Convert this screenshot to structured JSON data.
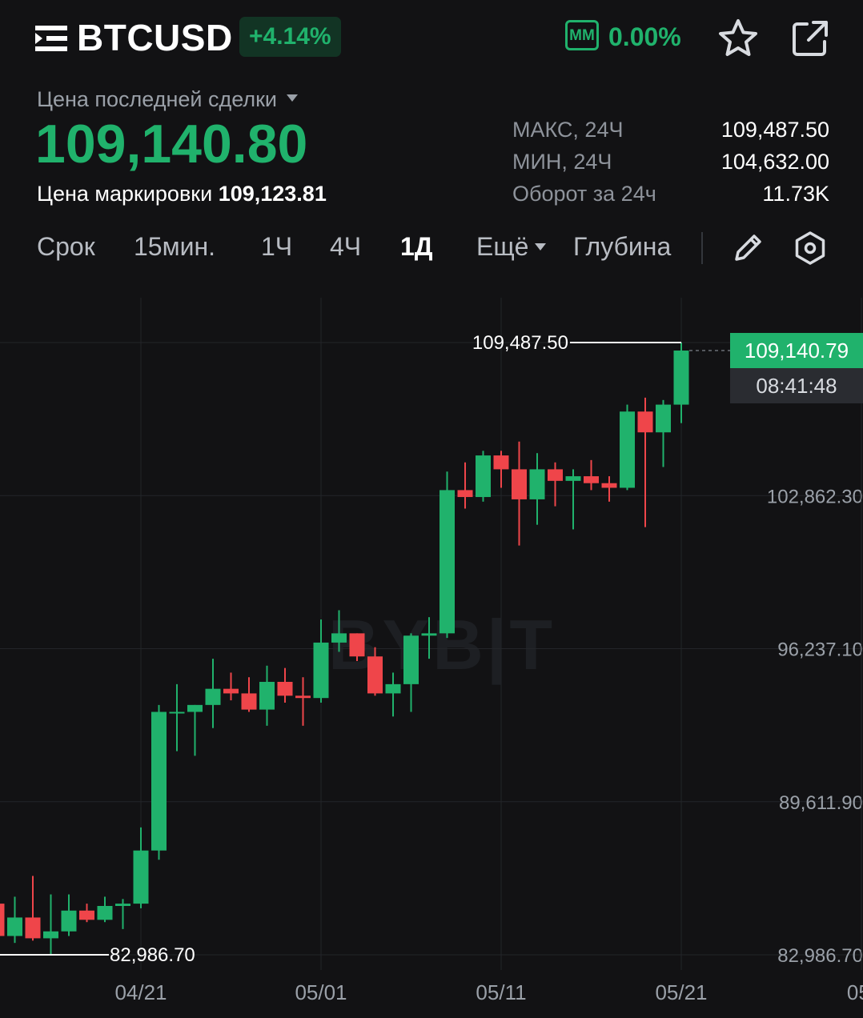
{
  "header": {
    "symbol": "BTCUSD",
    "change_percent": "+4.14%",
    "mm_label": "MM",
    "mm_value": "0.00%",
    "icons": [
      "menu-icon",
      "star-icon",
      "share-icon"
    ]
  },
  "price": {
    "type_label": "Цена последней сделки",
    "last_price": "109,140.80",
    "mark_label": "Цена маркировки",
    "mark_value": "109,123.81"
  },
  "stats": [
    {
      "label": "МАКС, 24Ч",
      "value": "109,487.50"
    },
    {
      "label": "МИН, 24Ч",
      "value": "104,632.00"
    },
    {
      "label": "Оборот за 24ч",
      "value": "11.73K"
    }
  ],
  "timeframes": {
    "label": "Срок",
    "items": [
      "15мин.",
      "1Ч",
      "4Ч",
      "1Д"
    ],
    "active": "1Д",
    "more": "Ещё",
    "depth": "Глубина",
    "icons": [
      "pencil-icon",
      "settings-icon"
    ]
  },
  "watermark": "BYB|T",
  "colors": {
    "up": "#20b26c",
    "down": "#ef454a",
    "background": "#121214",
    "grid": "#232529",
    "axis_text": "#9aa0a8"
  },
  "chart_data": {
    "type": "candlestick",
    "interval": "1Д",
    "y_ticks": [
      82986.7,
      89611.9,
      96237.1,
      102862.3
    ],
    "y_tick_labels": [
      "82,986.70",
      "89,611.90",
      "96,237.10",
      "102,862.30"
    ],
    "ylim": [
      82986.7,
      109487.5
    ],
    "x_tick_labels": [
      "04/21",
      "05/01",
      "05/11",
      "05/21",
      "05/"
    ],
    "x_tick_dates": [
      "2025-04-21",
      "2025-05-01",
      "2025-05-11",
      "2025-05-21",
      "2025-05-31"
    ],
    "high_marker": "109,487.50",
    "low_marker": "82,986.70",
    "current_price_label": "109,140.79",
    "countdown": "08:41:48",
    "candles": [
      {
        "date": "2025-04-13",
        "open": 85200,
        "high": 86100,
        "low": 83600,
        "close": 83800
      },
      {
        "date": "2025-04-14",
        "open": 83800,
        "high": 85500,
        "low": 83500,
        "close": 84600
      },
      {
        "date": "2025-04-15",
        "open": 84600,
        "high": 86400,
        "low": 83600,
        "close": 83700
      },
      {
        "date": "2025-04-16",
        "open": 83700,
        "high": 85600,
        "low": 83000,
        "close": 84000
      },
      {
        "date": "2025-04-17",
        "open": 84000,
        "high": 85600,
        "low": 83800,
        "close": 84900
      },
      {
        "date": "2025-04-18",
        "open": 84900,
        "high": 85200,
        "low": 84400,
        "close": 84500
      },
      {
        "date": "2025-04-19",
        "open": 84500,
        "high": 85500,
        "low": 84400,
        "close": 85100
      },
      {
        "date": "2025-04-20",
        "open": 85100,
        "high": 85400,
        "low": 84100,
        "close": 85200
      },
      {
        "date": "2025-04-21",
        "open": 85200,
        "high": 88500,
        "low": 85000,
        "close": 87500
      },
      {
        "date": "2025-04-22",
        "open": 87500,
        "high": 93800,
        "low": 87100,
        "close": 93500
      },
      {
        "date": "2025-04-23",
        "open": 93500,
        "high": 94700,
        "low": 91800,
        "close": 93500
      },
      {
        "date": "2025-04-24",
        "open": 93500,
        "high": 93800,
        "low": 91600,
        "close": 93800
      },
      {
        "date": "2025-04-25",
        "open": 93800,
        "high": 95800,
        "low": 92800,
        "close": 94500
      },
      {
        "date": "2025-04-26",
        "open": 94500,
        "high": 95200,
        "low": 94000,
        "close": 94300
      },
      {
        "date": "2025-04-27",
        "open": 94300,
        "high": 95000,
        "low": 93500,
        "close": 93600
      },
      {
        "date": "2025-04-28",
        "open": 93600,
        "high": 95500,
        "low": 92900,
        "close": 94800
      },
      {
        "date": "2025-04-29",
        "open": 94800,
        "high": 95400,
        "low": 93900,
        "close": 94200
      },
      {
        "date": "2025-04-30",
        "open": 94200,
        "high": 95000,
        "low": 92900,
        "close": 94100
      },
      {
        "date": "2025-05-01",
        "open": 94100,
        "high": 97500,
        "low": 93900,
        "close": 96500
      },
      {
        "date": "2025-05-02",
        "open": 96500,
        "high": 97900,
        "low": 96100,
        "close": 96900
      },
      {
        "date": "2025-05-03",
        "open": 96900,
        "high": 96900,
        "low": 95700,
        "close": 95900
      },
      {
        "date": "2025-05-04",
        "open": 95900,
        "high": 96300,
        "low": 94200,
        "close": 94300
      },
      {
        "date": "2025-05-05",
        "open": 94300,
        "high": 95200,
        "low": 93300,
        "close": 94700
      },
      {
        "date": "2025-05-06",
        "open": 94700,
        "high": 96900,
        "low": 93500,
        "close": 96800
      },
      {
        "date": "2025-05-07",
        "open": 96800,
        "high": 97600,
        "low": 95800,
        "close": 96900
      },
      {
        "date": "2025-05-08",
        "open": 96900,
        "high": 103900,
        "low": 96700,
        "close": 103100
      },
      {
        "date": "2025-05-09",
        "open": 103100,
        "high": 104300,
        "low": 102300,
        "close": 102800
      },
      {
        "date": "2025-05-10",
        "open": 102800,
        "high": 104800,
        "low": 102600,
        "close": 104600
      },
      {
        "date": "2025-05-11",
        "open": 104600,
        "high": 104800,
        "low": 103200,
        "close": 104000
      },
      {
        "date": "2025-05-12",
        "open": 104000,
        "high": 105200,
        "low": 100700,
        "close": 102700
      },
      {
        "date": "2025-05-13",
        "open": 102700,
        "high": 104700,
        "low": 101600,
        "close": 104000
      },
      {
        "date": "2025-05-14",
        "open": 104000,
        "high": 104300,
        "low": 102400,
        "close": 103500
      },
      {
        "date": "2025-05-15",
        "open": 103500,
        "high": 104000,
        "low": 101400,
        "close": 103700
      },
      {
        "date": "2025-05-16",
        "open": 103700,
        "high": 104400,
        "low": 103100,
        "close": 103400
      },
      {
        "date": "2025-05-17",
        "open": 103400,
        "high": 103700,
        "low": 102600,
        "close": 103200
      },
      {
        "date": "2025-05-18",
        "open": 103200,
        "high": 106800,
        "low": 103100,
        "close": 106500
      },
      {
        "date": "2025-05-19",
        "open": 106500,
        "high": 107100,
        "low": 101500,
        "close": 105600
      },
      {
        "date": "2025-05-20",
        "open": 105600,
        "high": 107000,
        "low": 104100,
        "close": 106800
      },
      {
        "date": "2025-05-21",
        "open": 106800,
        "high": 109487.5,
        "low": 106000,
        "close": 109140.79
      }
    ]
  }
}
